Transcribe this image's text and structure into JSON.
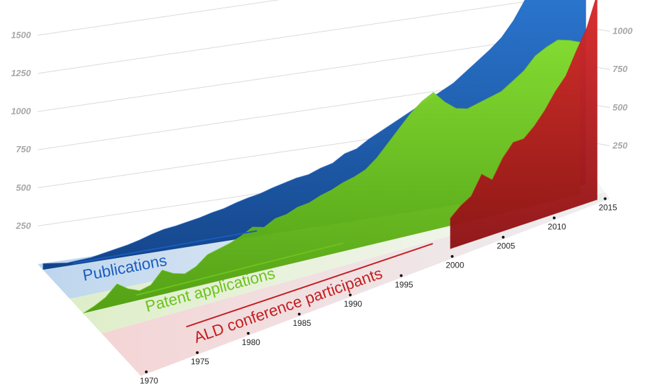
{
  "chart_data": {
    "type": "area",
    "title": "",
    "x_ticks": [
      "1970",
      "1975",
      "1980",
      "1985",
      "1990",
      "1995",
      "2000",
      "2005",
      "2010",
      "2015"
    ],
    "y_ticks": [
      250,
      500,
      750,
      1000,
      1250,
      1500
    ],
    "ylim": [
      0,
      1800
    ],
    "xlim": [
      1970,
      2016
    ],
    "grid": true,
    "series": [
      {
        "name": "Publications",
        "color": "#1a5cc0",
        "x": [
          1970,
          1971,
          1972,
          1973,
          1974,
          1975,
          1976,
          1977,
          1978,
          1979,
          1980,
          1981,
          1982,
          1983,
          1984,
          1985,
          1986,
          1987,
          1988,
          1989,
          1990,
          1991,
          1992,
          1993,
          1994,
          1995,
          1996,
          1997,
          1998,
          1999,
          2000,
          2001,
          2002,
          2003,
          2004,
          2005,
          2006,
          2007,
          2008,
          2009,
          2010,
          2011,
          2012,
          2013,
          2014,
          2015
        ],
        "values": [
          40,
          30,
          20,
          25,
          30,
          45,
          60,
          75,
          95,
          120,
          140,
          150,
          165,
          180,
          200,
          215,
          240,
          260,
          275,
          300,
          320,
          340,
          350,
          380,
          400,
          450,
          470,
          520,
          560,
          600,
          640,
          680,
          720,
          760,
          800,
          860,
          920,
          980,
          1050,
          1150,
          1280,
          1400,
          1500,
          1560,
          1640,
          1750
        ]
      },
      {
        "name": "Patent applications",
        "color": "#6cc31c",
        "x": [
          1970,
          1971,
          1972,
          1973,
          1974,
          1975,
          1976,
          1977,
          1978,
          1979,
          1980,
          1981,
          1982,
          1983,
          1984,
          1985,
          1986,
          1987,
          1988,
          1989,
          1990,
          1991,
          1992,
          1993,
          1994,
          1995,
          1996,
          1997,
          1998,
          1999,
          2000,
          2001,
          2002,
          2003,
          2004,
          2005,
          2006,
          2007,
          2008,
          2009,
          2010,
          2011,
          2012,
          2013,
          2014
        ],
        "values": [
          0,
          30,
          70,
          140,
          90,
          60,
          80,
          160,
          120,
          100,
          130,
          190,
          210,
          230,
          260,
          300,
          280,
          320,
          330,
          360,
          370,
          400,
          420,
          450,
          470,
          500,
          560,
          640,
          720,
          800,
          860,
          900,
          820,
          760,
          740,
          760,
          780,
          800,
          850,
          900,
          980,
          1020,
          1050,
          1030,
          1000
        ]
      },
      {
        "name": "ALD conference participants",
        "color": "#c41e20",
        "x": [
          2001,
          2002,
          2003,
          2004,
          2005,
          2006,
          2007,
          2008,
          2009,
          2010,
          2011,
          2012,
          2013,
          2014,
          2015
        ],
        "values": [
          200,
          260,
          300,
          420,
          360,
          480,
          560,
          560,
          620,
          700,
          800,
          880,
          1020,
          1150,
          1350
        ]
      }
    ]
  }
}
